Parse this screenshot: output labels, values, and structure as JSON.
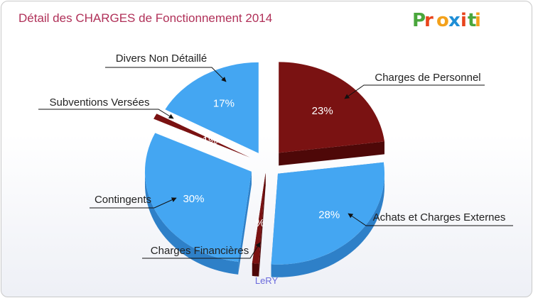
{
  "title": "Détail des CHARGES de Fonctionnement 2014",
  "logo": [
    "P",
    "r",
    "o",
    "x",
    "i",
    "t",
    "i"
  ],
  "logo_colors": [
    "#4aa63c",
    "#e8441c",
    "#f3a11b",
    "#1e8ed6",
    "#e8441c",
    "#4aa63c",
    "#f3a11b"
  ],
  "town": "LeRY",
  "colors": {
    "blue": "#44a6f2",
    "blue_dark": "#2e80c8",
    "red": "#7a1212",
    "red_dark": "#4e0808"
  },
  "chart_data": {
    "type": "pie",
    "title": "Détail des CHARGES de Fonctionnement 2014",
    "slices": [
      {
        "label": "Charges de Personnel",
        "value": 23,
        "display": "23%",
        "color": "red"
      },
      {
        "label": "Achats et Charges Externes",
        "value": 28,
        "display": "28%",
        "color": "blue"
      },
      {
        "label": "Charges Financières",
        "value": 1,
        "display": "%",
        "color": "red"
      },
      {
        "label": "Contingents",
        "value": 30,
        "display": "30%",
        "color": "blue"
      },
      {
        "label": "Subventions Versées",
        "value": 1,
        "display": "1%",
        "color": "red"
      },
      {
        "label": "Divers Non Détaillé",
        "value": 17,
        "display": "17%",
        "color": "blue"
      }
    ]
  }
}
